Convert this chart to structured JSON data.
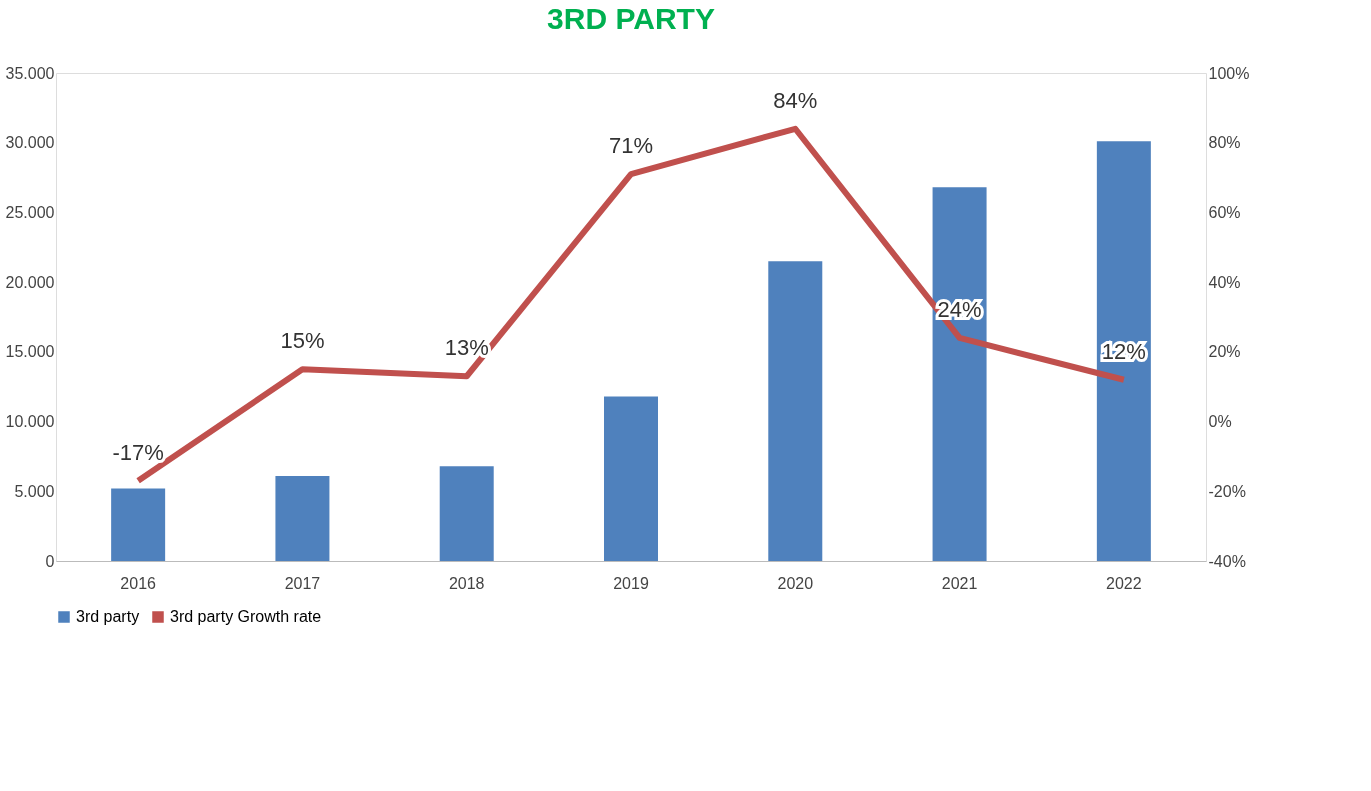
{
  "chart_data": {
    "type": "bar",
    "title": "3RD PARTY",
    "categories": [
      "2016",
      "2017",
      "2018",
      "2019",
      "2020",
      "2021",
      "2022"
    ],
    "series": [
      {
        "name": "3rd party",
        "color": "#4f81bd",
        "values": [
          5200,
          6100,
          6800,
          11800,
          21500,
          26800,
          30100
        ]
      },
      {
        "name": "3rd party Growth rate",
        "type": "line",
        "axis": "y2",
        "color": "#c0504d",
        "values": [
          -17,
          15,
          13,
          71,
          84,
          24,
          12
        ],
        "value_labels": [
          "-17%",
          "15%",
          "13%",
          "71%",
          "84%",
          "24%",
          "12%"
        ]
      }
    ],
    "ylim": [
      0,
      35000
    ],
    "yticks": [
      0,
      {
        "value": 5000,
        "label": "5.000"
      },
      {
        "value": 10000,
        "label": "10.000"
      },
      {
        "value": 15000,
        "label": "15.000"
      },
      {
        "value": 20000,
        "label": "20.000"
      },
      {
        "value": 25000,
        "label": "25.000"
      },
      {
        "value": 30000,
        "label": "30.000"
      },
      {
        "value": 35000,
        "label": "35.000"
      }
    ],
    "y2lim": [
      -40,
      100
    ],
    "y2ticks": [
      {
        "value": -40,
        "label": "-40%"
      },
      {
        "value": -20,
        "label": "-20%"
      },
      {
        "value": 0,
        "label": "0%"
      },
      {
        "value": 20,
        "label": "20%"
      },
      {
        "value": 40,
        "label": "40%"
      },
      {
        "value": 60,
        "label": "60%"
      },
      {
        "value": 80,
        "label": "80%"
      },
      {
        "value": 100,
        "label": "100%"
      }
    ],
    "legend": "bottom",
    "grid": false
  }
}
